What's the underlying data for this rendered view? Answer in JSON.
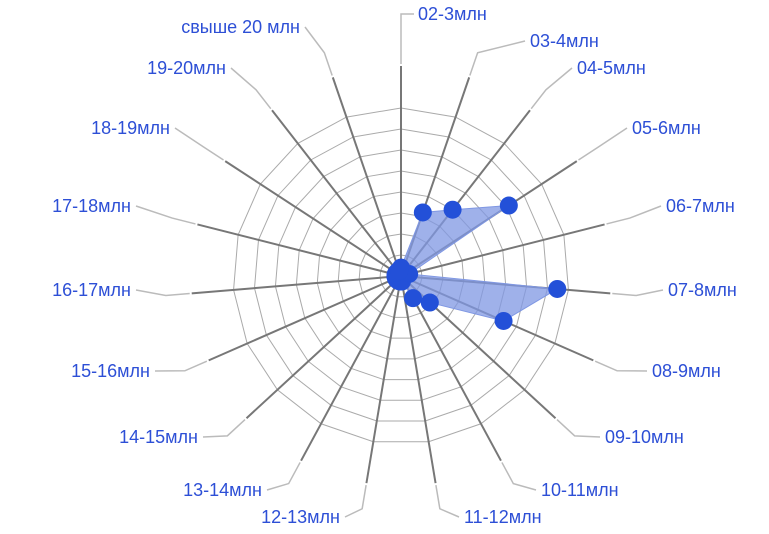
{
  "chart_data": {
    "type": "radar",
    "categories": [
      "02-3млн",
      "03-4млн",
      "04-5млн",
      "05-6млн",
      "06-7млн",
      "07-8млн",
      "08-9млн",
      "09-10млн",
      "10-11млн",
      "11-12млн",
      "12-13млн",
      "13-14млн",
      "14-15млн",
      "15-16млн",
      "16-17млн",
      "17-18млн",
      "18-19млн",
      "19-20млн",
      "свыше 20 млн"
    ],
    "series": [
      {
        "values": [
          0.3,
          2.4,
          3.0,
          4.6,
          0.3,
          5.6,
          4.0,
          1.4,
          0.9,
          0.2,
          0.2,
          0.2,
          0.2,
          0.2,
          0.2,
          0.2,
          0.2,
          0.2,
          0.2
        ]
      }
    ],
    "rlim": [
      0,
      6
    ],
    "grid": true,
    "colors": {
      "label": "#2d4fd6",
      "point": "#2350d8",
      "fill": "#7f97e3",
      "spoke": "#777777",
      "grid": "#aaaaaa",
      "leader": "#bbbbbb"
    }
  }
}
